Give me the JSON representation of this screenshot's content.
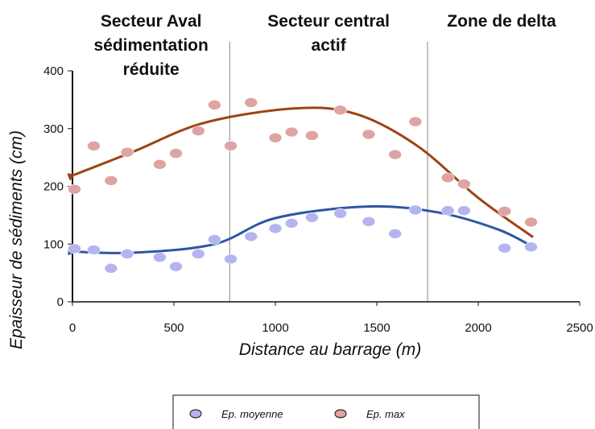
{
  "chart_data": {
    "type": "scatter",
    "xlabel": "Distance au barrage (m)",
    "ylabel": "Epaisseur de sédiments (cm)",
    "xlim": [
      0,
      2500
    ],
    "ylim": [
      0,
      400
    ],
    "x_ticks": [
      "0",
      "500",
      "1000",
      "1500",
      "2000",
      "2500"
    ],
    "y_ticks": [
      "0",
      "100",
      "200",
      "300",
      "400"
    ],
    "sectors": [
      {
        "lines": [
          "Secteur Aval",
          "sédimentation",
          "réduite"
        ],
        "x_end": 775
      },
      {
        "lines": [
          "Secteur central",
          "actif"
        ],
        "x_end": 1750
      },
      {
        "lines": [
          "Zone de delta"
        ]
      }
    ],
    "series": [
      {
        "name": "Ep. moyenne",
        "marker_color": "#b4b4f0",
        "line_color": "#2e56a3",
        "points": [
          [
            10,
            92
          ],
          [
            105,
            90
          ],
          [
            190,
            58
          ],
          [
            270,
            83
          ],
          [
            430,
            77
          ],
          [
            510,
            61
          ],
          [
            620,
            83
          ],
          [
            700,
            108
          ],
          [
            780,
            74
          ],
          [
            880,
            113
          ],
          [
            1000,
            127
          ],
          [
            1080,
            136
          ],
          [
            1180,
            146
          ],
          [
            1320,
            153
          ],
          [
            1460,
            139
          ],
          [
            1590,
            118
          ],
          [
            1690,
            159
          ],
          [
            1850,
            158
          ],
          [
            1930,
            158
          ],
          [
            2130,
            93
          ],
          [
            2260,
            95
          ]
        ],
        "trend": [
          [
            10,
            87
          ],
          [
            300,
            85
          ],
          [
            700,
            100
          ],
          [
            1000,
            145
          ],
          [
            1450,
            165
          ],
          [
            1800,
            155
          ],
          [
            2100,
            125
          ],
          [
            2270,
            95
          ]
        ]
      },
      {
        "name": "Ep. max",
        "marker_color": "#dea3a3",
        "line_color": "#9c4414",
        "points": [
          [
            10,
            195
          ],
          [
            105,
            270
          ],
          [
            190,
            210
          ],
          [
            270,
            259
          ],
          [
            430,
            238
          ],
          [
            510,
            257
          ],
          [
            620,
            296
          ],
          [
            700,
            341
          ],
          [
            780,
            270
          ],
          [
            880,
            345
          ],
          [
            1000,
            284
          ],
          [
            1080,
            294
          ],
          [
            1180,
            288
          ],
          [
            1320,
            332
          ],
          [
            1460,
            290
          ],
          [
            1590,
            255
          ],
          [
            1690,
            312
          ],
          [
            1850,
            215
          ],
          [
            1930,
            204
          ],
          [
            2130,
            157
          ],
          [
            2260,
            138
          ]
        ],
        "trend": [
          [
            10,
            220
          ],
          [
            300,
            260
          ],
          [
            650,
            310
          ],
          [
            1100,
            335
          ],
          [
            1400,
            325
          ],
          [
            1700,
            270
          ],
          [
            2000,
            180
          ],
          [
            2270,
            112
          ]
        ]
      }
    ],
    "legend_position": "bottom-center"
  }
}
